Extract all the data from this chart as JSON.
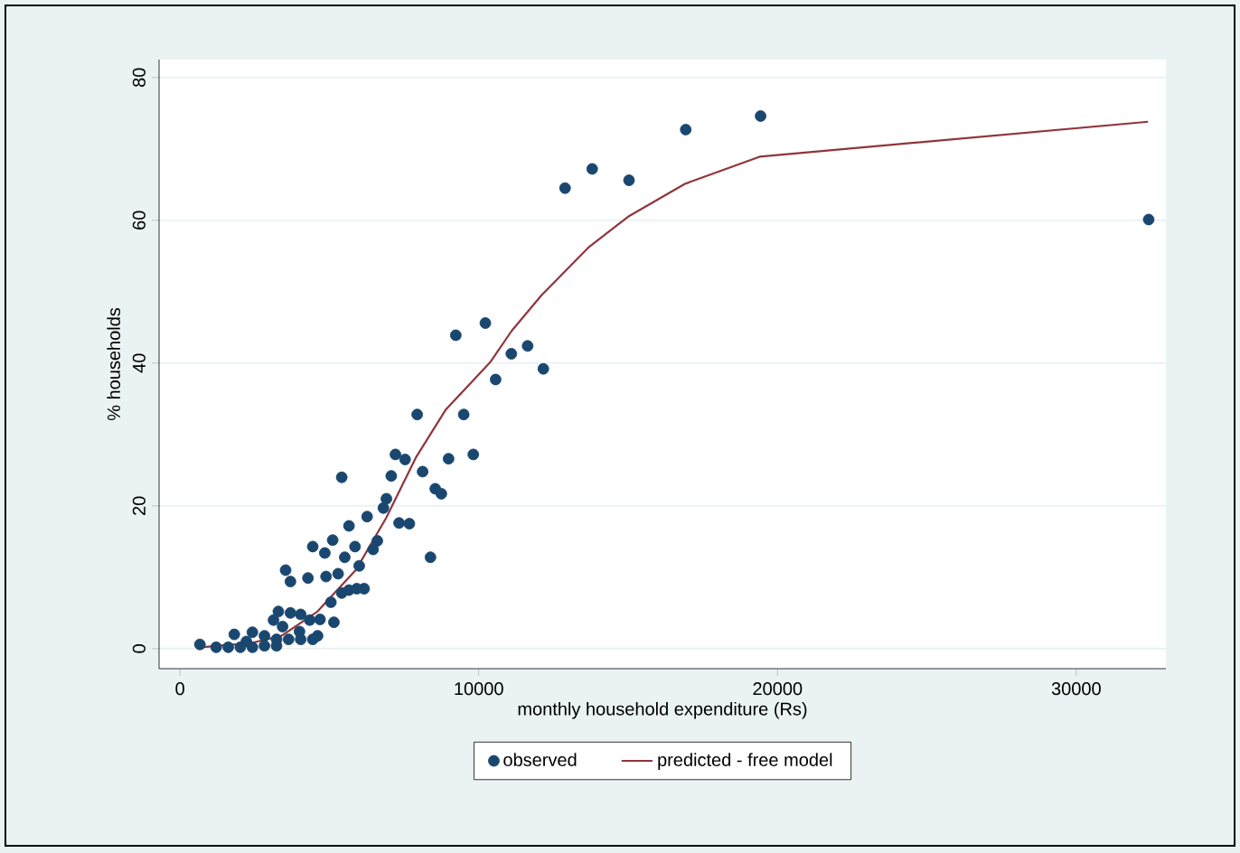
{
  "chart_data": {
    "type": "scatter",
    "xlabel": "monthly household expenditure (Rs)",
    "ylabel": "% households",
    "xlim": [
      -700,
      33000
    ],
    "ylim": [
      -2.8,
      82.5
    ],
    "xticks": [
      0,
      10000,
      20000,
      30000
    ],
    "yticks": [
      0,
      20,
      40,
      60,
      80
    ],
    "grid": "y",
    "legend": "bottom",
    "series": [
      {
        "name": "observed",
        "marker": "circle",
        "color": "#1a476f",
        "x": [
          10565,
          7940,
          9497,
          7212,
          7535,
          8990,
          9818,
          5414,
          7071,
          8121,
          8545,
          8747,
          6909,
          6808,
          6263,
          5657,
          7333,
          7677,
          5111,
          4444,
          4848,
          5859,
          6606,
          5515,
          6000,
          6465,
          8384,
          3535,
          3697,
          4283,
          4889,
          5293,
          6162,
          5919,
          5657,
          5414,
          5051,
          3293,
          3697,
          4040,
          4343,
          4687,
          5152,
          4606,
          4000,
          3434,
          3131,
          1818,
          2424,
          2828,
          3232,
          3636,
          667,
          1212,
          1616,
          2020,
          2424,
          2828,
          3232,
          2222,
          4040,
          4444,
          9232,
          10222,
          11091,
          11636,
          12162,
          12889,
          13798,
          15030,
          16929,
          19434,
          32424
        ],
        "values": [
          37.7,
          32.8,
          32.8,
          27.2,
          26.5,
          26.6,
          27.2,
          24.0,
          24.2,
          24.8,
          22.4,
          21.7,
          21.0,
          19.7,
          18.5,
          17.2,
          17.6,
          17.5,
          15.2,
          14.3,
          13.4,
          14.3,
          15.1,
          12.8,
          11.6,
          13.9,
          12.8,
          11.0,
          9.4,
          9.9,
          10.1,
          10.5,
          8.4,
          8.4,
          8.2,
          7.8,
          6.5,
          5.2,
          5.0,
          4.8,
          4.0,
          4.1,
          3.7,
          1.8,
          2.4,
          3.1,
          4.0,
          2.0,
          2.3,
          1.8,
          1.3,
          1.3,
          0.6,
          0.2,
          0.2,
          0.2,
          0.2,
          0.4,
          0.4,
          1.0,
          1.3,
          1.3,
          43.9,
          45.6,
          41.3,
          42.4,
          39.2,
          64.5,
          67.2,
          65.6,
          72.7,
          74.6,
          60.1
        ]
      },
      {
        "name": "predicted - free model",
        "type": "line",
        "marker": "none",
        "line_style": "solid",
        "color": "#90353b",
        "x": [
          700,
          2400,
          3400,
          4600,
          5900,
          6900,
          7900,
          8900,
          10400,
          11100,
          12100,
          13700,
          15000,
          16900,
          19400,
          32400
        ],
        "values": [
          0.2,
          0.8,
          1.8,
          5.2,
          11.1,
          18.3,
          26.8,
          33.5,
          40.2,
          44.5,
          49.5,
          56.3,
          60.5,
          65.1,
          68.9,
          73.8
        ]
      }
    ]
  }
}
